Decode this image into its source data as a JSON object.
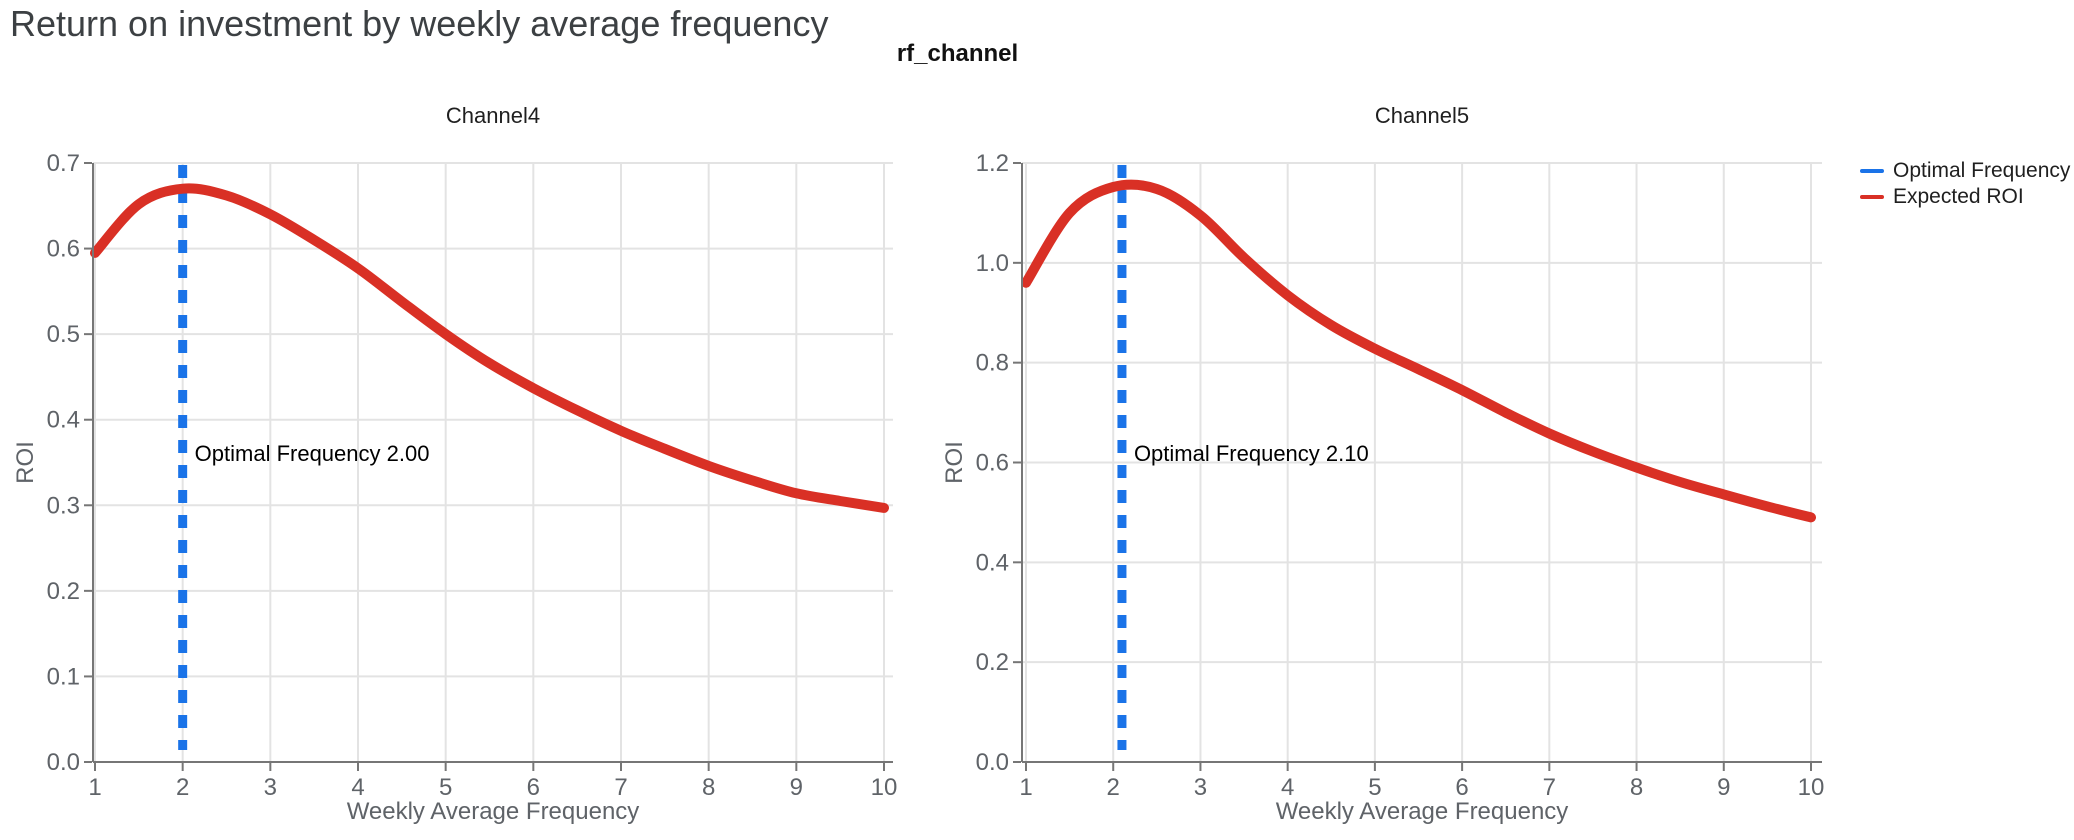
{
  "page": {
    "title": "Return on investment by weekly average frequency",
    "facet_title": "rf_channel"
  },
  "legend": {
    "items": [
      {
        "label": "Optimal Frequency",
        "color": "#1a73e8"
      },
      {
        "label": "Expected ROI",
        "color": "#d93025"
      }
    ]
  },
  "colors": {
    "optimal_frequency_blue": "#1a73e8",
    "expected_roi_red": "#d93025",
    "grid": "#e3e3e3",
    "axis_line": "#767676",
    "tick_text": "#5f6368",
    "subplot_title_text": "#1f1f1f",
    "page_title_text": "#3c4043",
    "annotation_text": "#000000"
  },
  "chart_data": [
    {
      "type": "line",
      "title": "Channel4",
      "xlabel": "Weekly Average Frequency",
      "ylabel": "ROI",
      "xlim": [
        0.98,
        10.1
      ],
      "ylim": [
        0.0,
        0.7
      ],
      "grid": true,
      "xticks": [
        1,
        2,
        3,
        4,
        5,
        6,
        7,
        8,
        9,
        10
      ],
      "xtick_labels": [
        "1",
        "2",
        "3",
        "4",
        "5",
        "6",
        "7",
        "8",
        "9",
        "10"
      ],
      "yticks": [
        0.0,
        0.1,
        0.2,
        0.3,
        0.4,
        0.5,
        0.6,
        0.7
      ],
      "ytick_labels": [
        "0.0",
        "0.1",
        "0.2",
        "0.3",
        "0.4",
        "0.5",
        "0.6",
        "0.7"
      ],
      "optimal_frequency": "2.00",
      "vline": {
        "name": "Optimal Frequency",
        "x": 2.0,
        "style": "dashed"
      },
      "annotation": {
        "text": "Optimal Frequency  2.00",
        "x": 2.0
      },
      "series": [
        {
          "name": "Expected ROI",
          "x": [
            1,
            1.5,
            2,
            2.5,
            3,
            3.5,
            4,
            4.5,
            5,
            5.5,
            6,
            6.5,
            7,
            7.5,
            8,
            8.5,
            9,
            9.5,
            10
          ],
          "y": [
            0.595,
            0.652,
            0.67,
            0.662,
            0.64,
            0.61,
            0.577,
            0.538,
            0.5,
            0.466,
            0.437,
            0.411,
            0.387,
            0.366,
            0.346,
            0.329,
            0.314,
            0.305,
            0.297
          ]
        }
      ]
    },
    {
      "type": "line",
      "title": "Channel5",
      "xlabel": "Weekly Average Frequency",
      "ylabel": "ROI",
      "xlim": [
        0.98,
        10.1
      ],
      "ylim": [
        0.0,
        1.2
      ],
      "grid": true,
      "xticks": [
        1,
        2,
        3,
        4,
        5,
        6,
        7,
        8,
        9,
        10
      ],
      "xtick_labels": [
        "1",
        "2",
        "3",
        "4",
        "5",
        "6",
        "7",
        "8",
        "9",
        "10"
      ],
      "yticks": [
        0.0,
        0.2,
        0.4,
        0.6,
        0.8,
        1.0,
        1.2
      ],
      "ytick_labels": [
        "0.0",
        "0.2",
        "0.4",
        "0.6",
        "0.8",
        "1.0",
        "1.2"
      ],
      "optimal_frequency": "2.10",
      "vline": {
        "name": "Optimal Frequency",
        "x": 2.1,
        "style": "dashed"
      },
      "annotation": {
        "text": "Optimal Frequency  2.10",
        "x": 2.1
      },
      "series": [
        {
          "name": "Expected ROI",
          "x": [
            1,
            1.5,
            2,
            2.5,
            3,
            3.5,
            4,
            4.5,
            5,
            5.5,
            6,
            6.5,
            7,
            7.5,
            8,
            8.5,
            9,
            9.5,
            10
          ],
          "y": [
            0.96,
            1.1,
            1.152,
            1.148,
            1.095,
            1.01,
            0.935,
            0.875,
            0.828,
            0.787,
            0.745,
            0.7,
            0.658,
            0.622,
            0.59,
            0.561,
            0.536,
            0.512,
            0.49
          ]
        }
      ]
    }
  ]
}
